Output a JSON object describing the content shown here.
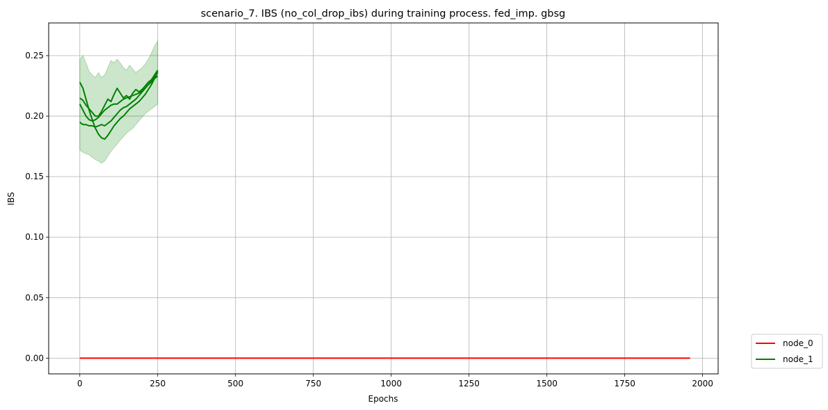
{
  "chart_data": {
    "type": "line",
    "title": "scenario_7. IBS (no_col_drop_ibs) during training process. fed_imp. gbsg",
    "xlabel": "Epochs",
    "ylabel": "IBS",
    "xlim": [
      -100,
      2050
    ],
    "ylim": [
      -0.013,
      0.277
    ],
    "xticks": [
      0,
      250,
      500,
      750,
      1000,
      1250,
      1500,
      1750,
      2000
    ],
    "yticks": [
      0.0,
      0.05,
      0.1,
      0.15,
      0.2,
      0.25
    ],
    "ytick_labels": [
      "0.00",
      "0.05",
      "0.10",
      "0.15",
      "0.20",
      "0.25"
    ],
    "grid": true,
    "legend_position": "outside-bottom-right",
    "series": [
      {
        "name": "node_0",
        "color": "#ff0000",
        "x": [
          0,
          1960
        ],
        "y": [
          0.0,
          0.0
        ]
      },
      {
        "name": "node_1",
        "color": "#008000",
        "band_color": "#008000",
        "x": [
          0,
          10,
          20,
          30,
          40,
          50,
          60,
          70,
          80,
          90,
          100,
          110,
          120,
          130,
          140,
          150,
          160,
          170,
          180,
          190,
          200,
          210,
          220,
          230,
          240,
          250
        ],
        "y": [
          0.21,
          0.205,
          0.2,
          0.197,
          0.196,
          0.197,
          0.199,
          0.202,
          0.205,
          0.207,
          0.209,
          0.21,
          0.21,
          0.212,
          0.214,
          0.215,
          0.216,
          0.217,
          0.218,
          0.219,
          0.221,
          0.223,
          0.226,
          0.228,
          0.231,
          0.233
        ],
        "y_lower": [
          0.172,
          0.17,
          0.169,
          0.168,
          0.166,
          0.164,
          0.163,
          0.161,
          0.163,
          0.167,
          0.171,
          0.174,
          0.177,
          0.18,
          0.183,
          0.186,
          0.188,
          0.19,
          0.193,
          0.196,
          0.199,
          0.202,
          0.204,
          0.206,
          0.208,
          0.21
        ],
        "y_upper": [
          0.247,
          0.25,
          0.244,
          0.237,
          0.234,
          0.232,
          0.236,
          0.232,
          0.234,
          0.24,
          0.246,
          0.244,
          0.247,
          0.244,
          0.24,
          0.238,
          0.242,
          0.239,
          0.236,
          0.238,
          0.24,
          0.243,
          0.247,
          0.252,
          0.258,
          0.262
        ]
      }
    ],
    "node_1_extra_traces": [
      {
        "x": [
          0,
          10,
          20,
          30,
          40,
          50,
          60,
          70,
          80,
          90,
          100,
          110,
          120,
          130,
          140,
          150,
          160,
          170,
          180,
          190,
          200,
          210,
          220,
          230,
          240,
          250
        ],
        "y": [
          0.228,
          0.223,
          0.214,
          0.205,
          0.197,
          0.19,
          0.185,
          0.182,
          0.181,
          0.184,
          0.188,
          0.192,
          0.195,
          0.198,
          0.2,
          0.203,
          0.206,
          0.208,
          0.21,
          0.212,
          0.215,
          0.218,
          0.222,
          0.226,
          0.231,
          0.237
        ]
      },
      {
        "x": [
          0,
          10,
          20,
          30,
          40,
          50,
          60,
          70,
          80,
          90,
          100,
          110,
          120,
          130,
          140,
          150,
          160,
          170,
          180,
          190,
          200,
          210,
          220,
          230,
          240,
          250
        ],
        "y": [
          0.195,
          0.193,
          0.193,
          0.192,
          0.192,
          0.191,
          0.192,
          0.193,
          0.192,
          0.194,
          0.196,
          0.199,
          0.202,
          0.205,
          0.207,
          0.208,
          0.21,
          0.212,
          0.214,
          0.217,
          0.22,
          0.223,
          0.226,
          0.229,
          0.232,
          0.236
        ]
      },
      {
        "x": [
          0,
          10,
          20,
          30,
          40,
          50,
          60,
          70,
          80,
          90,
          100,
          110,
          120,
          130,
          140,
          150,
          160,
          170,
          180,
          190,
          200,
          210,
          220,
          230,
          240,
          250
        ],
        "y": [
          0.215,
          0.213,
          0.209,
          0.206,
          0.203,
          0.2,
          0.2,
          0.204,
          0.209,
          0.214,
          0.212,
          0.218,
          0.223,
          0.219,
          0.215,
          0.217,
          0.214,
          0.219,
          0.222,
          0.22,
          0.222,
          0.225,
          0.228,
          0.23,
          0.234,
          0.238
        ]
      }
    ]
  }
}
